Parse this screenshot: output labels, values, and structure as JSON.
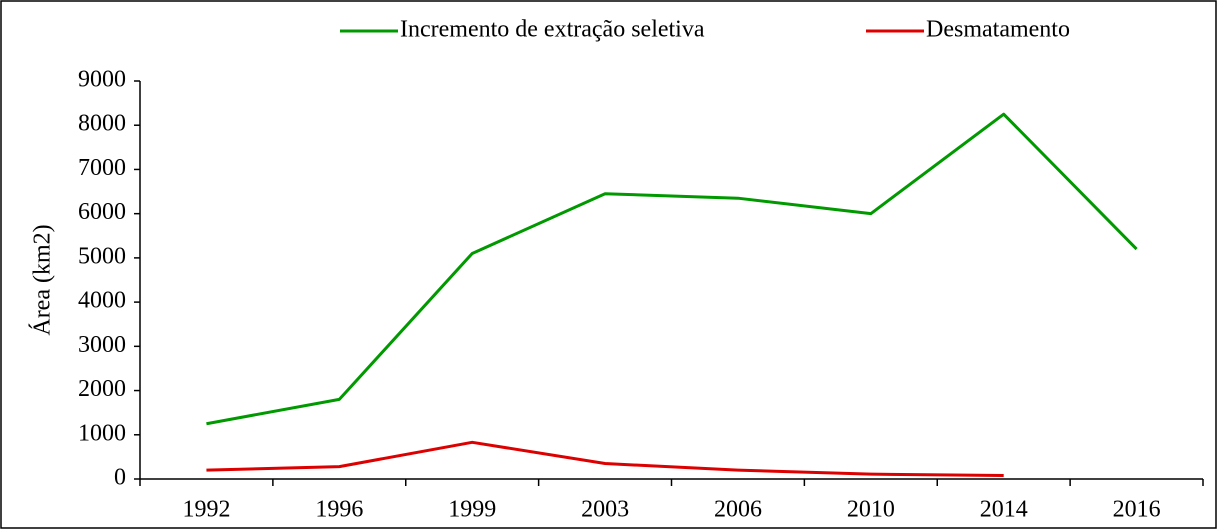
{
  "chart_data": {
    "type": "line",
    "categories": [
      "1992",
      "1996",
      "1999",
      "2003",
      "2006",
      "2010",
      "2014",
      "2016"
    ],
    "y_label": "Área (km2)",
    "series": [
      {
        "name": "Incremento de extração seletiva",
        "color": "#009900",
        "values": [
          1250,
          1800,
          5100,
          6450,
          6350,
          6000,
          8250,
          5200
        ]
      },
      {
        "name": "Desmatamento",
        "color": "#dd0000",
        "values": [
          200,
          280,
          830,
          350,
          200,
          110,
          80,
          null
        ]
      }
    ],
    "ylim": [
      0,
      9000
    ],
    "yticks": [
      0,
      1000,
      2000,
      3000,
      4000,
      5000,
      6000,
      7000,
      8000,
      9000
    ],
    "grid": false,
    "legend": "top"
  }
}
